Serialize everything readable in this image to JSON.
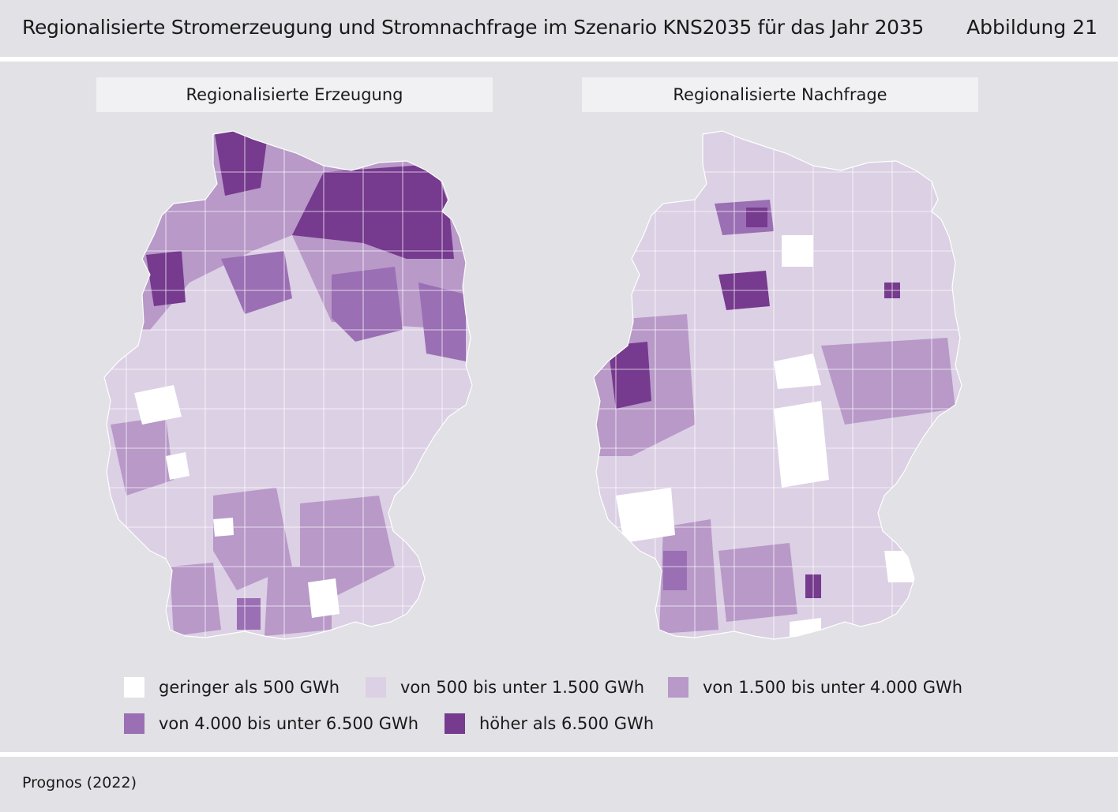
{
  "header": {
    "title": "Regionalisierte Stromerzeugung und Stromnachfrage im Szenario KNS2035 für das Jahr 2035",
    "figure_number": "Abbildung 21"
  },
  "maps": {
    "left_label": "Regionalisierte Erzeugung",
    "right_label": "Regionalisierte Nachfrage"
  },
  "legend": {
    "items": [
      {
        "label": "geringer als 500 GWh",
        "color": "#ffffff"
      },
      {
        "label": "von 500 bis unter 1.500 GWh",
        "color": "#dcd0e4"
      },
      {
        "label": "von 1.500 bis unter 4.000 GWh",
        "color": "#b899c8"
      },
      {
        "label": "von 4.000 bis unter 6.500 GWh",
        "color": "#9b6fb4"
      },
      {
        "label": "höher als 6.500 GWh",
        "color": "#763a8e"
      }
    ]
  },
  "footer": {
    "source": "Prognos (2022)"
  }
}
